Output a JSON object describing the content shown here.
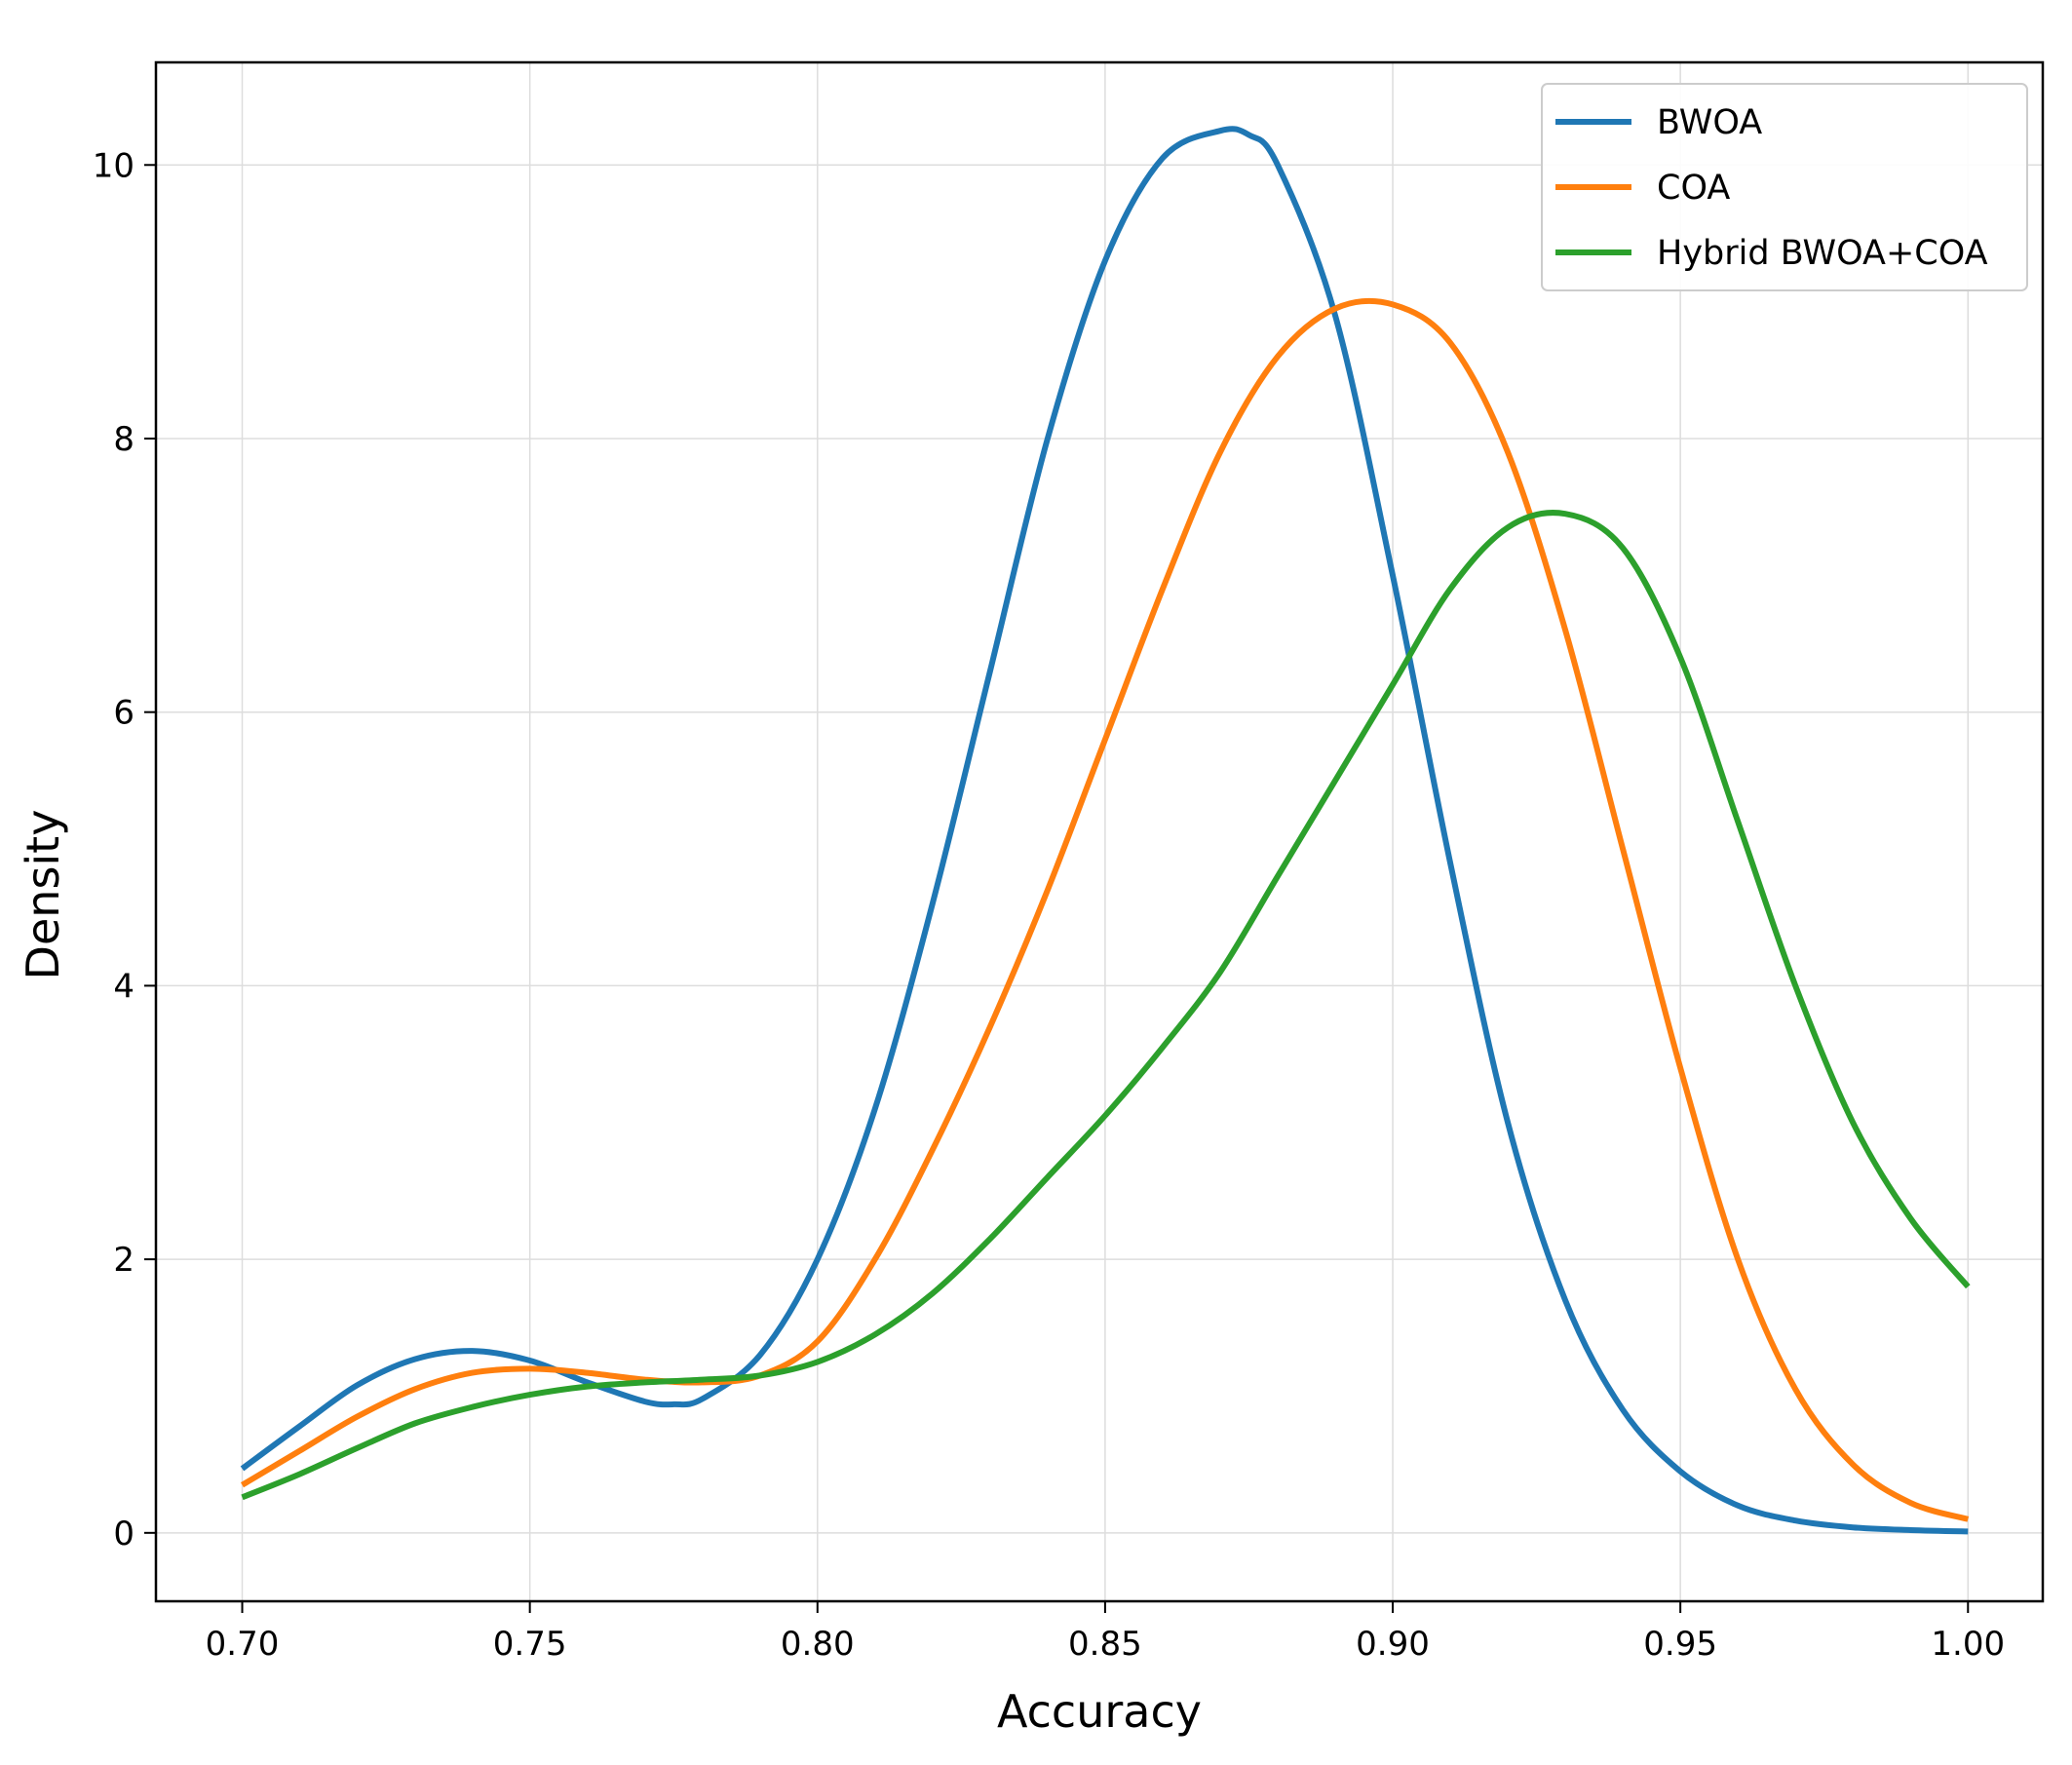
{
  "chart_data": {
    "type": "line",
    "title": "",
    "xlabel": "Accuracy",
    "ylabel": "Density",
    "xlim": [
      0.685,
      1.013
    ],
    "ylim": [
      -0.5,
      10.75
    ],
    "xticks": [
      0.7,
      0.75,
      0.8,
      0.85,
      0.9,
      0.95,
      1.0
    ],
    "xtick_labels": [
      "0.70",
      "0.75",
      "0.80",
      "0.85",
      "0.90",
      "0.95",
      "1.00"
    ],
    "yticks": [
      0,
      2,
      4,
      6,
      8,
      10
    ],
    "ytick_labels": [
      "0",
      "2",
      "4",
      "6",
      "8",
      "10"
    ],
    "grid": true,
    "legend_position": "top-right",
    "series": [
      {
        "name": "BWOA",
        "color": "#1f77b4",
        "x": [
          0.7,
          0.71,
          0.72,
          0.73,
          0.74,
          0.75,
          0.76,
          0.77,
          0.775,
          0.78,
          0.79,
          0.8,
          0.81,
          0.82,
          0.83,
          0.84,
          0.85,
          0.86,
          0.87,
          0.875,
          0.88,
          0.89,
          0.9,
          0.91,
          0.92,
          0.93,
          0.94,
          0.95,
          0.96,
          0.97,
          0.98,
          0.99,
          1.0
        ],
        "y": [
          0.47,
          0.78,
          1.08,
          1.27,
          1.33,
          1.26,
          1.1,
          0.96,
          0.94,
          0.98,
          1.3,
          2.0,
          3.1,
          4.6,
          6.3,
          8.0,
          9.3,
          10.05,
          10.25,
          10.22,
          10.0,
          8.9,
          7.0,
          4.9,
          3.0,
          1.7,
          0.9,
          0.45,
          0.2,
          0.09,
          0.04,
          0.02,
          0.01
        ]
      },
      {
        "name": "COA",
        "color": "#ff7f0e",
        "x": [
          0.7,
          0.71,
          0.72,
          0.73,
          0.74,
          0.75,
          0.76,
          0.77,
          0.78,
          0.79,
          0.8,
          0.81,
          0.82,
          0.83,
          0.84,
          0.85,
          0.86,
          0.87,
          0.88,
          0.89,
          0.9,
          0.91,
          0.92,
          0.93,
          0.94,
          0.95,
          0.96,
          0.97,
          0.98,
          0.99,
          1.0
        ],
        "y": [
          0.35,
          0.6,
          0.85,
          1.05,
          1.17,
          1.2,
          1.17,
          1.12,
          1.1,
          1.15,
          1.4,
          2.0,
          2.8,
          3.7,
          4.7,
          5.8,
          6.9,
          7.9,
          8.6,
          8.95,
          8.98,
          8.7,
          7.9,
          6.6,
          5.0,
          3.4,
          2.0,
          1.05,
          0.5,
          0.22,
          0.1
        ]
      },
      {
        "name": "Hybrid BWOA+COA",
        "color": "#2ca02c",
        "x": [
          0.7,
          0.71,
          0.72,
          0.73,
          0.74,
          0.75,
          0.76,
          0.77,
          0.78,
          0.79,
          0.8,
          0.81,
          0.82,
          0.83,
          0.84,
          0.85,
          0.86,
          0.87,
          0.88,
          0.89,
          0.9,
          0.91,
          0.92,
          0.93,
          0.94,
          0.95,
          0.96,
          0.97,
          0.98,
          0.99,
          1.0
        ],
        "y": [
          0.26,
          0.43,
          0.62,
          0.8,
          0.92,
          1.01,
          1.07,
          1.1,
          1.12,
          1.15,
          1.25,
          1.45,
          1.75,
          2.15,
          2.6,
          3.05,
          3.55,
          4.1,
          4.8,
          5.5,
          6.2,
          6.9,
          7.35,
          7.45,
          7.2,
          6.4,
          5.2,
          4.0,
          3.0,
          2.3,
          1.8
        ]
      }
    ]
  }
}
